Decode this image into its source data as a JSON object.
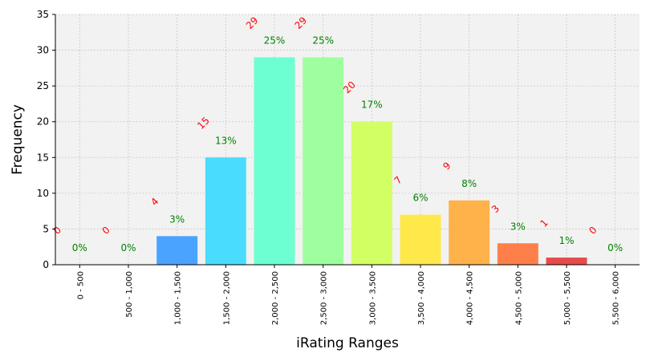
{
  "chart_data": {
    "type": "bar",
    "xlabel": "iRating Ranges",
    "ylabel": "Frequency",
    "ylim": [
      0,
      35
    ],
    "yticks": [
      0,
      5,
      10,
      15,
      20,
      25,
      30,
      35
    ],
    "grid": true,
    "categories": [
      "0 - 500",
      "500 - 1,000",
      "1,000 - 1,500",
      "1,500 - 2,000",
      "2,000 - 2,500",
      "2,500 - 3,000",
      "3,000 - 3,500",
      "3,500 - 4,000",
      "4,000 - 4,500",
      "4,500 - 5,000",
      "5,000 - 5,500",
      "5,500 - 6,000"
    ],
    "values": [
      0,
      0,
      4,
      15,
      29,
      29,
      20,
      7,
      9,
      3,
      1,
      0
    ],
    "percent_labels": [
      "0%",
      "0%",
      "3%",
      "13%",
      "25%",
      "25%",
      "17%",
      "6%",
      "8%",
      "3%",
      "1%",
      "0%"
    ],
    "bar_colors": [
      "#3c8cff",
      "#3c8cff",
      "#4aa3ff",
      "#4adcff",
      "#6dffd2",
      "#9eff9e",
      "#d2ff64",
      "#ffe84a",
      "#ffb24a",
      "#ff7f4a",
      "#e84a4a",
      "#e84a4a"
    ],
    "count_label_color": "#ff0000",
    "percent_label_color": "#008000",
    "plot_background": "#f2f2f2"
  }
}
